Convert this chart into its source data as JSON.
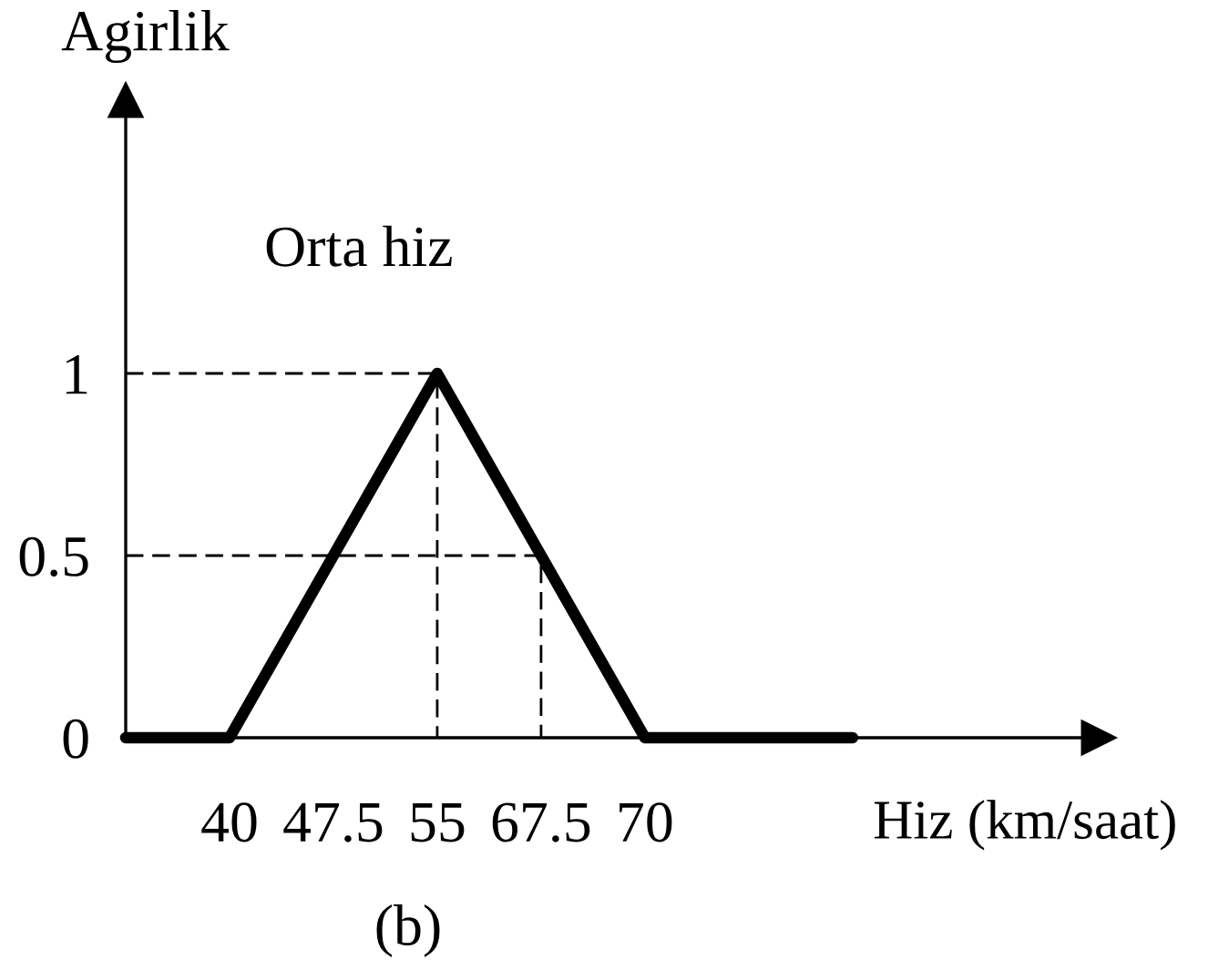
{
  "chart_data": {
    "type": "line",
    "xlabel": "Hiz (km/saat)",
    "ylabel": "Agirlik",
    "annotations": [
      "(b)"
    ],
    "categories": [
      null,
      "40",
      "47.5",
      "55",
      "67.5",
      "70",
      null,
      null
    ],
    "ylim": [
      0,
      1.75
    ],
    "yticks": [
      0,
      0.5,
      1
    ],
    "line_style": "solid",
    "series": [
      {
        "name": "Orta hiz",
        "color": "#000000",
        "values": [
          0,
          0,
          0.5,
          1,
          0.5,
          0,
          0,
          0
        ]
      },
      {
        "type": "step",
        "color": "#000000",
        "line_style": "dashed",
        "values": [
          1,
          1,
          1,
          0,
          null,
          null,
          null,
          null
        ]
      },
      {
        "type": "step",
        "color": "#000000",
        "line_style": "dashed",
        "values": [
          0.5,
          0.5,
          0.5,
          0.5,
          0,
          null,
          null,
          null
        ]
      }
    ]
  }
}
